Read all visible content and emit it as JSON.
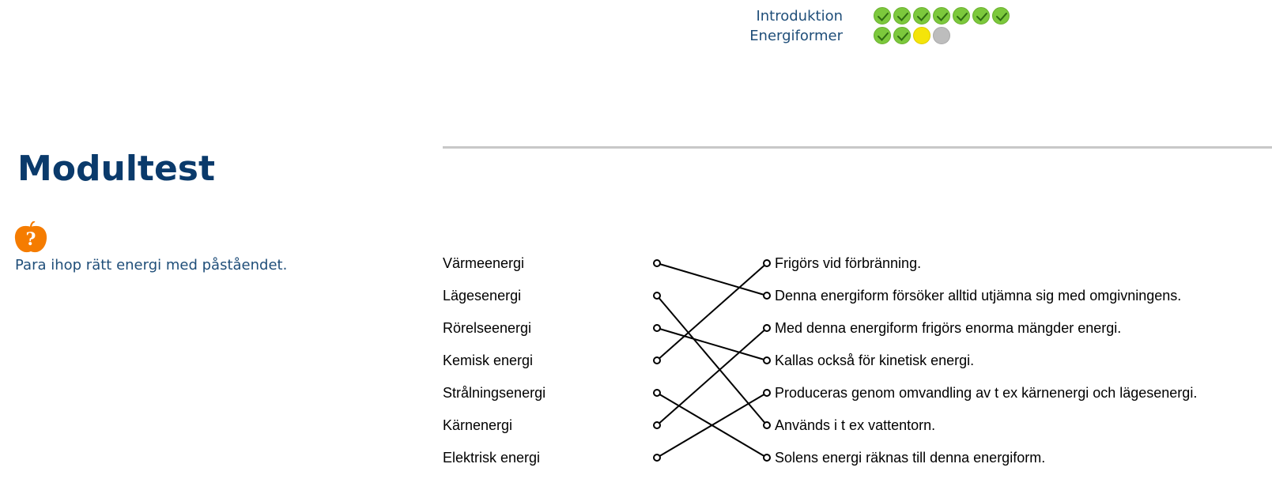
{
  "progress": [
    {
      "label": "Introduktion",
      "dots": [
        "done",
        "done",
        "done",
        "done",
        "done",
        "done",
        "done"
      ]
    },
    {
      "label": "Energiformer",
      "dots": [
        "done",
        "done",
        "current",
        "todo"
      ]
    }
  ],
  "title": "Modultest",
  "question": {
    "icon": "orange-question-apple-icon",
    "icon_glyph": "?",
    "instruction": "Para ihop rätt energi med påståendet."
  },
  "matching": {
    "left": [
      "Värmeenergi",
      "Lägesenergi",
      "Rörelseenergi",
      "Kemisk energi",
      "Strålningsenergi",
      "Kärnenergi",
      "Elektrisk energi"
    ],
    "right": [
      "Frigörs vid förbränning.",
      "Denna energiform försöker alltid utjämna sig med omgivningens.",
      "Med denna energiform frigörs enorma mängder energi.",
      "Kallas också för kinetisk energi.",
      "Produceras genom omvandling av t ex kärnenergi och lägesenergi.",
      "Används i t ex vattentorn.",
      "Solens energi räknas till denna energiform."
    ],
    "connections": [
      [
        0,
        1
      ],
      [
        1,
        5
      ],
      [
        2,
        3
      ],
      [
        3,
        0
      ],
      [
        4,
        6
      ],
      [
        5,
        2
      ],
      [
        6,
        4
      ]
    ]
  },
  "colors": {
    "done": "#7cc83c",
    "current": "#f4e40a",
    "todo": "#bdbdbd",
    "label": "#1f4e79",
    "title": "#0a3a6b",
    "icon": "#f57c00"
  }
}
